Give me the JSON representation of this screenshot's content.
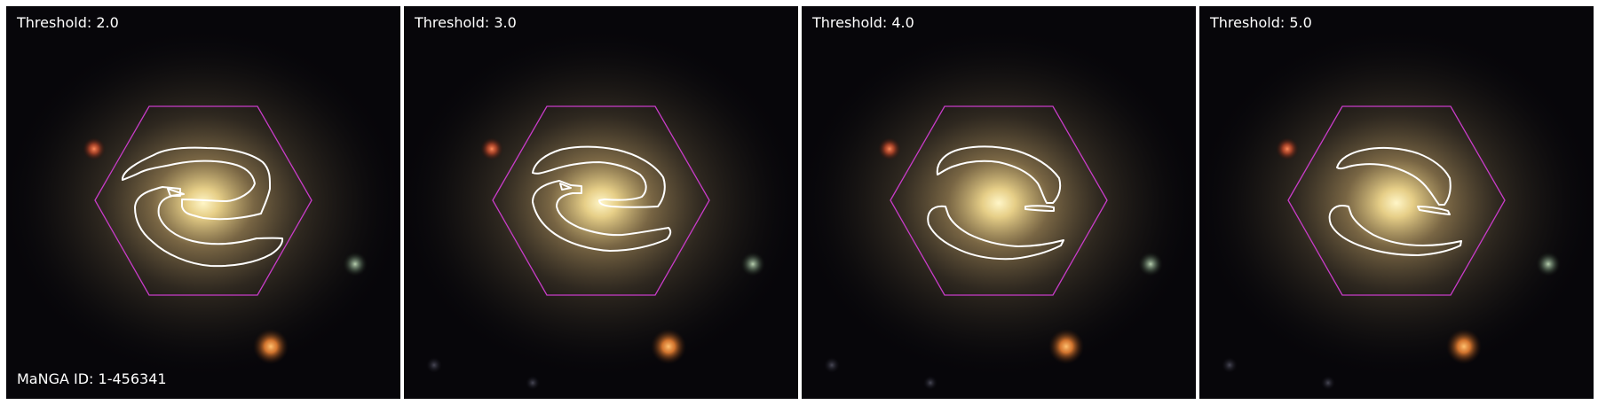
{
  "panels": [
    {
      "threshold_label": "Threshold: 2.0"
    },
    {
      "threshold_label": "Threshold: 3.0"
    },
    {
      "threshold_label": "Threshold: 4.0"
    },
    {
      "threshold_label": "Threshold: 5.0"
    }
  ],
  "manga_id_label": "MaNGA ID: 1-456341",
  "colors": {
    "background": "#07060a",
    "galaxy_core": "#fff2b0",
    "hexagon": "#c83cc8",
    "contour": "#ffffff",
    "star_red": "#e0623a",
    "star_orange": "#f4923a",
    "star_green": "#8ea88e"
  }
}
